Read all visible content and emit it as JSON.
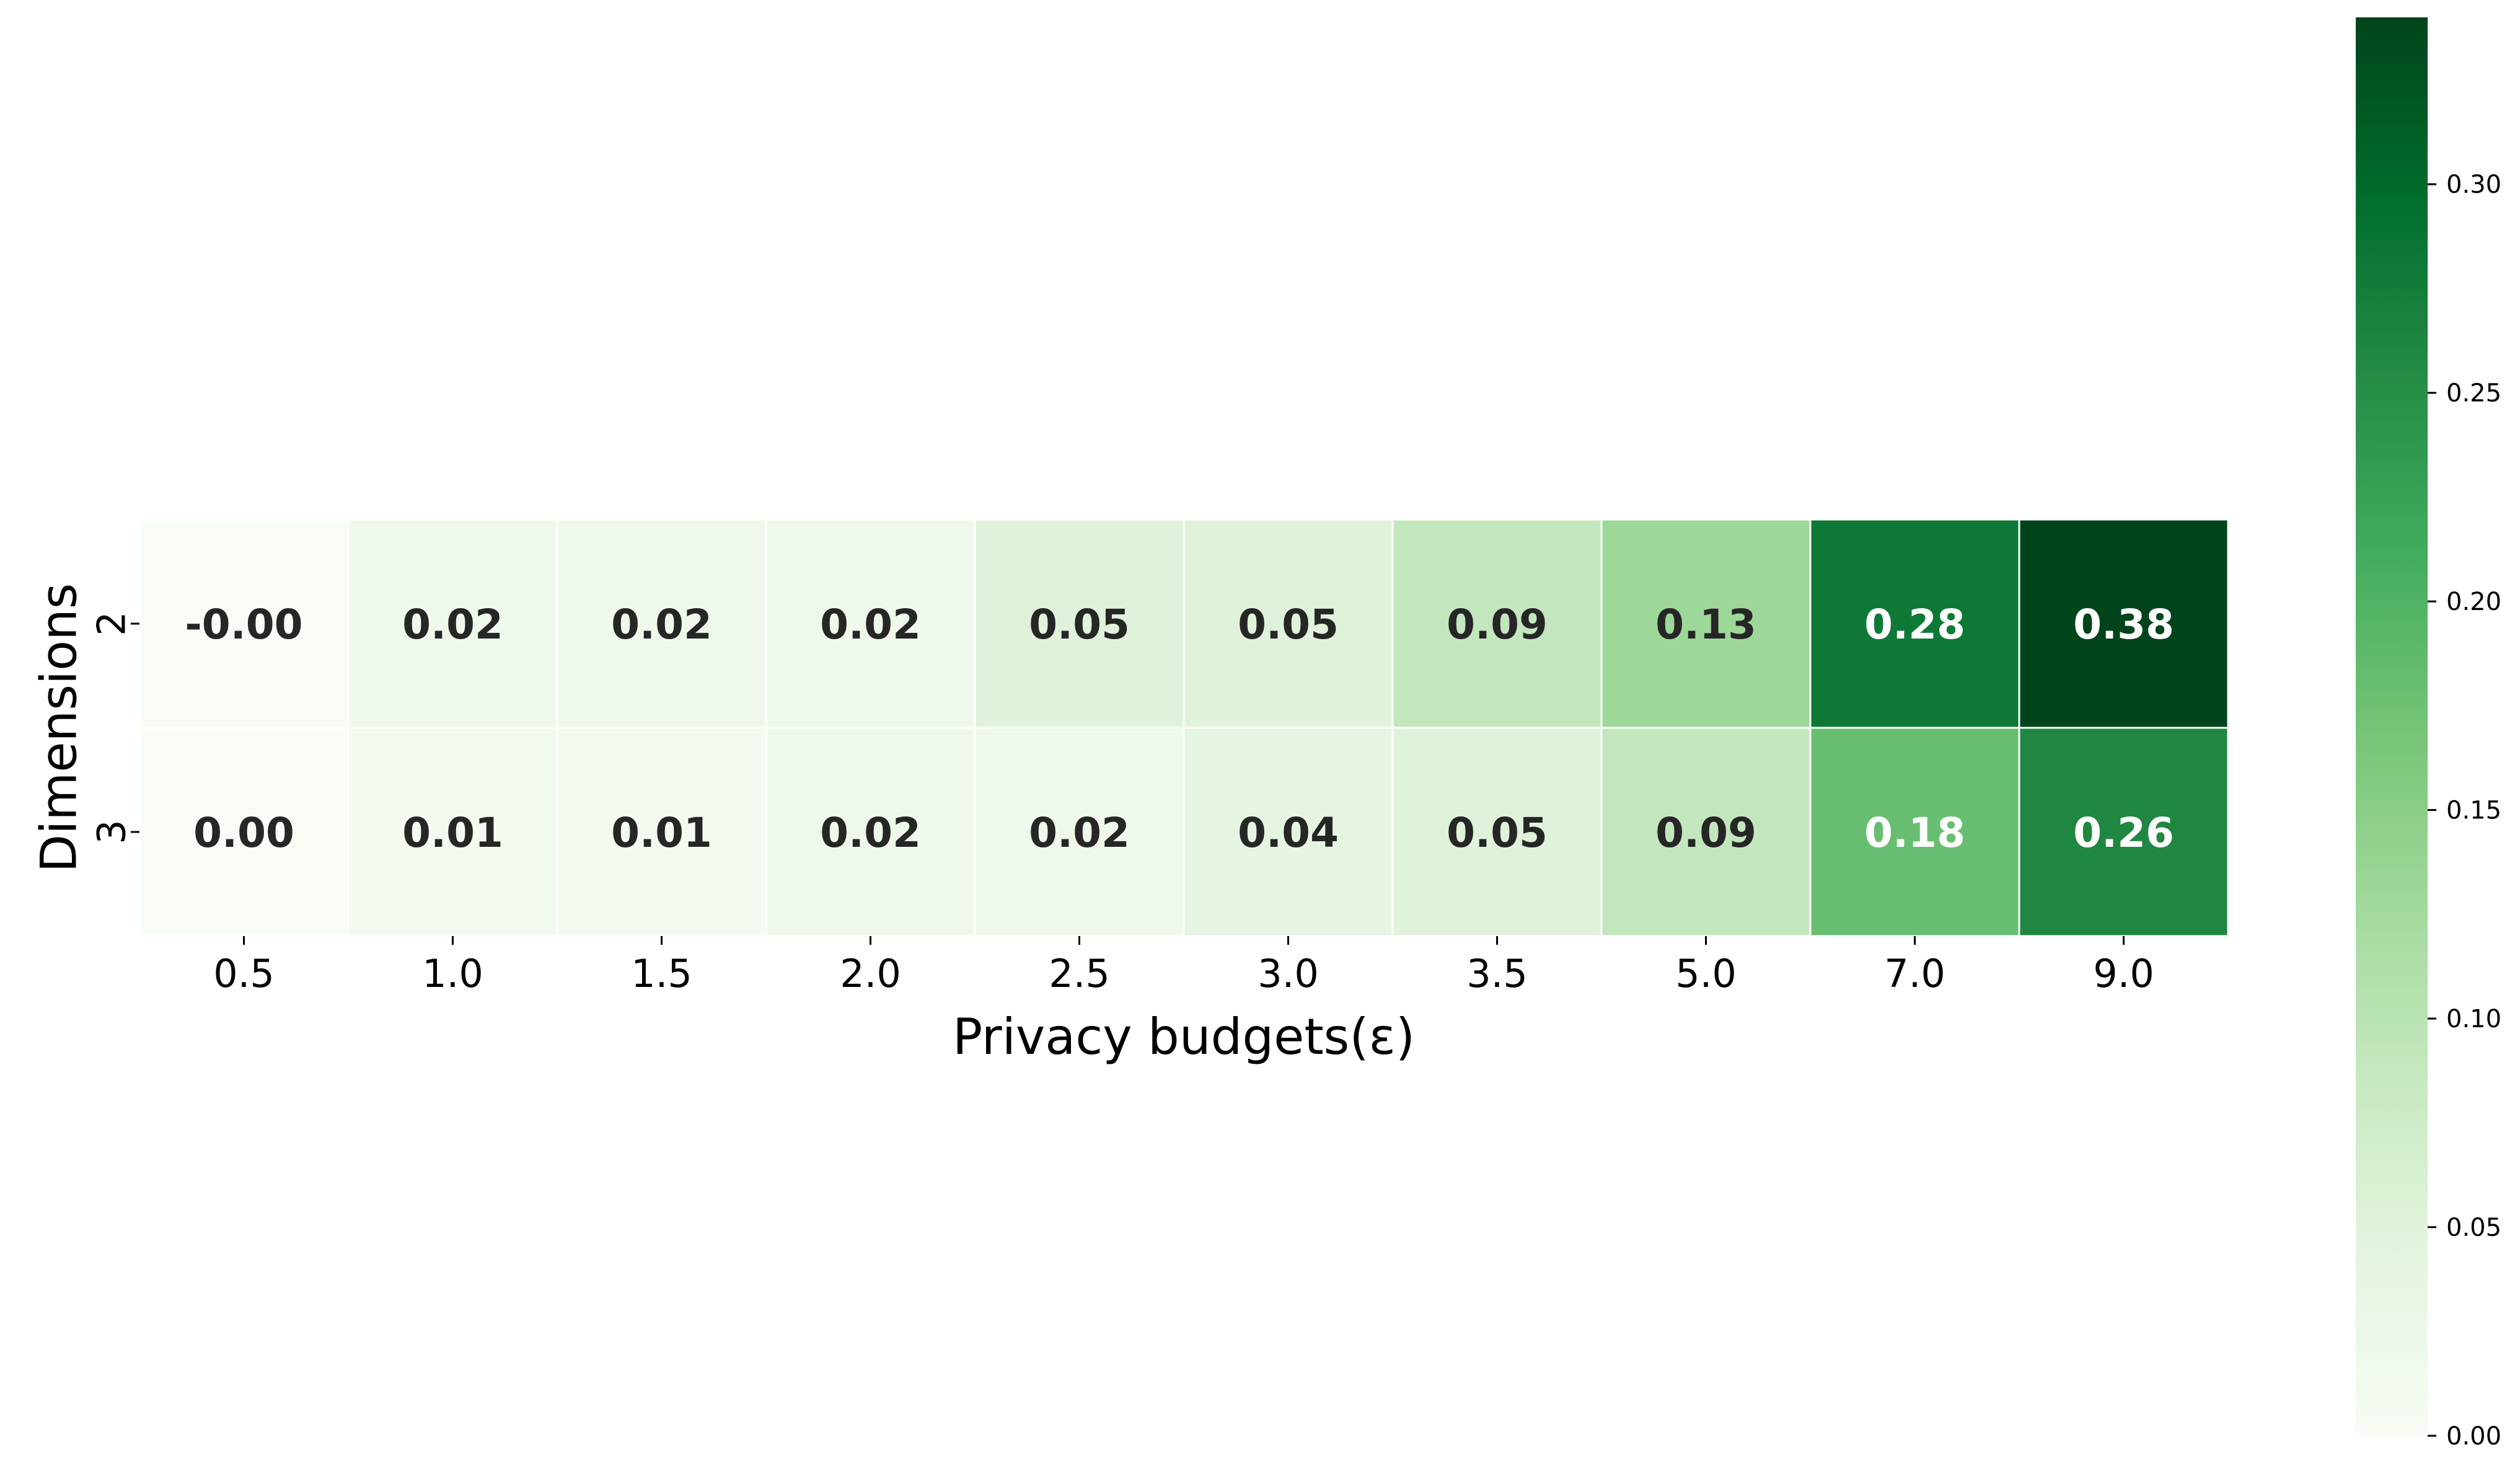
{
  "chart_data": {
    "type": "heatmap",
    "xlabel": "Privacy budgets(ε)",
    "ylabel": "Dimensions",
    "x_categories": [
      "0.5",
      "1.0",
      "1.5",
      "2.0",
      "2.5",
      "3.0",
      "3.5",
      "5.0",
      "7.0",
      "9.0"
    ],
    "y_categories": [
      "2",
      "3"
    ],
    "values": [
      [
        -0.0,
        0.02,
        0.02,
        0.02,
        0.05,
        0.05,
        0.09,
        0.13,
        0.28,
        0.38
      ],
      [
        0.0,
        0.01,
        0.01,
        0.02,
        0.02,
        0.04,
        0.05,
        0.09,
        0.18,
        0.26
      ]
    ],
    "cell_labels": [
      [
        "-0.00",
        "0.02",
        "0.02",
        "0.02",
        "0.05",
        "0.05",
        "0.09",
        "0.13",
        "0.28",
        "0.38"
      ],
      [
        "0.00",
        "0.01",
        "0.01",
        "0.02",
        "0.02",
        "0.04",
        "0.05",
        "0.09",
        "0.18",
        "0.26"
      ]
    ],
    "colorscale": "Greens",
    "colorbar": {
      "range": [
        0,
        0.34
      ],
      "ticks": [
        0.0,
        0.05,
        0.1,
        0.15,
        0.2,
        0.25,
        0.3
      ],
      "tick_labels": [
        "0.00",
        "0.05",
        "0.10",
        "0.15",
        "0.20",
        "0.25",
        "0.30"
      ]
    },
    "colors": {
      "low": "#f7fcf5",
      "high": "#00441b",
      "dark_text": "#262626",
      "light_text": "#ffffff",
      "cell_border": "#ffffff"
    }
  }
}
